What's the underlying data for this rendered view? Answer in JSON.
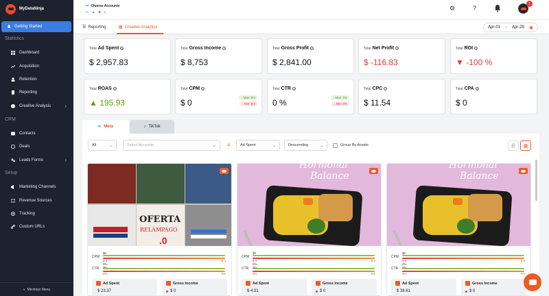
{
  "app": {
    "name": "MyDataNinja"
  },
  "sidebar": {
    "active": "Getting Started",
    "sections": [
      {
        "title": "Statistics",
        "items": [
          {
            "label": "Dashboard",
            "icon": "grid-icon"
          },
          {
            "label": "Acquisition",
            "icon": "trend-icon"
          },
          {
            "label": "Retention",
            "icon": "users-icon"
          },
          {
            "label": "Reporting",
            "icon": "document-icon"
          },
          {
            "label": "Creative Analysis",
            "icon": "palette-icon",
            "expandable": true
          }
        ]
      },
      {
        "title": "CRM",
        "items": [
          {
            "label": "Contacts",
            "icon": "contacts-icon"
          },
          {
            "label": "Deals",
            "icon": "dollar-icon"
          },
          {
            "label": "Leads Forms",
            "icon": "form-icon",
            "expandable": true
          }
        ]
      },
      {
        "title": "Setup",
        "items": [
          {
            "label": "Marketing Channels",
            "icon": "megaphone-icon"
          },
          {
            "label": "Revenue Sources",
            "icon": "wallet-icon"
          },
          {
            "label": "Tracking",
            "icon": "target-icon"
          },
          {
            "label": "Custom URLs",
            "icon": "link-icon"
          }
        ]
      }
    ],
    "minimize": "Minimize Menu"
  },
  "topbar": {
    "choose_accounts": "Choose Accounts",
    "help": "?",
    "notification_count": "1"
  },
  "tabs": {
    "reporting": "Reporting",
    "creative": "Creative Analytics"
  },
  "date_range": {
    "from": "Apr-01",
    "sep": "-",
    "to": "Apr-29"
  },
  "metrics": [
    {
      "prefix": "Total",
      "name": "Ad Spent",
      "value": "$ 2,957.83",
      "tone": "normal"
    },
    {
      "prefix": "Total",
      "name": "Gross Income",
      "value": "$ 8,753",
      "tone": "normal"
    },
    {
      "prefix": "Total",
      "name": "Gross Profit",
      "value": "$ 2,841.00",
      "tone": "normal"
    },
    {
      "prefix": "Total",
      "name": "Net Profit",
      "value": "$ -116.83",
      "tone": "red"
    },
    {
      "prefix": "Total",
      "name": "ROI",
      "value": "-100 %",
      "tone": "red-down"
    },
    {
      "prefix": "Total",
      "name": "ROAS",
      "value": "195.93",
      "tone": "green-up"
    },
    {
      "prefix": "Total",
      "name": "CPM",
      "value": "$ 0",
      "tone": "normal",
      "max": "Max: $ 0",
      "min": "Min: $ 0"
    },
    {
      "prefix": "Total",
      "name": "CTR",
      "value": "0 %",
      "tone": "normal",
      "max": "Max: 0%",
      "min": "Min: 0%"
    },
    {
      "prefix": "Total",
      "name": "CPC",
      "value": "$ 11.54",
      "tone": "normal"
    },
    {
      "prefix": "Total",
      "name": "CPA",
      "value": "$ 0",
      "tone": "normal"
    }
  ],
  "platforms": {
    "meta": "Meta",
    "tiktok": "TikTok"
  },
  "filters": {
    "status": "All",
    "accounts_placeholder": "Select Accounts",
    "sort_by": "Ad Spent",
    "order": "Descending",
    "group_label": "Group By Assets"
  },
  "creatives": [
    {
      "image": "polo-shirts",
      "overlay_text_1": "OFERTA",
      "overlay_text_2": "RELÁMPAGO",
      "cpm_top": "$0",
      "cpm_left": "$ 0",
      "cpm_right": "$ 0",
      "ctr_top1": "0%",
      "ctr_top2": "0%",
      "ctr_left": "0%",
      "ctr_right": "0%",
      "ad_spent_label": "Ad Spent",
      "ad_spent": "$ 23.37",
      "gross_label": "Gross Income",
      "gross": "$ 0"
    },
    {
      "image": "hormonal-balance",
      "overlay_text_1": "Hormonal",
      "overlay_text_2": "Balance",
      "cpm_top": "$0",
      "cpm_left": "$ 0",
      "cpm_right": "$ 0",
      "ctr_top1": "0%",
      "ctr_top2": "0%",
      "ctr_left": "0%",
      "ctr_right": "0%",
      "ad_spent_label": "Ad Spent",
      "ad_spent": "$ 4.31",
      "gross_label": "Gross Income",
      "gross": "$ 0"
    },
    {
      "image": "hormonal-balance",
      "overlay_text_1": "Hormonal",
      "overlay_text_2": "Balance",
      "cpm_top": "$0",
      "cpm_left": "$ 0",
      "cpm_right": "$ 0",
      "ctr_top1": "0%",
      "ctr_top2": "0%",
      "ctr_left": "0%",
      "ctr_right": "0%",
      "ad_spent_label": "Ad Spent",
      "ad_spent": "$ 38.61",
      "gross_label": "Gross Income",
      "gross": "$ 0"
    }
  ],
  "labels": {
    "cpm": "CPM",
    "ctr": "CTR"
  },
  "colors": {
    "brand": "#ef5a23",
    "sidebar": "#1d2230",
    "active": "#3b7de1",
    "red": "#e53935",
    "green": "#8bc34a"
  }
}
